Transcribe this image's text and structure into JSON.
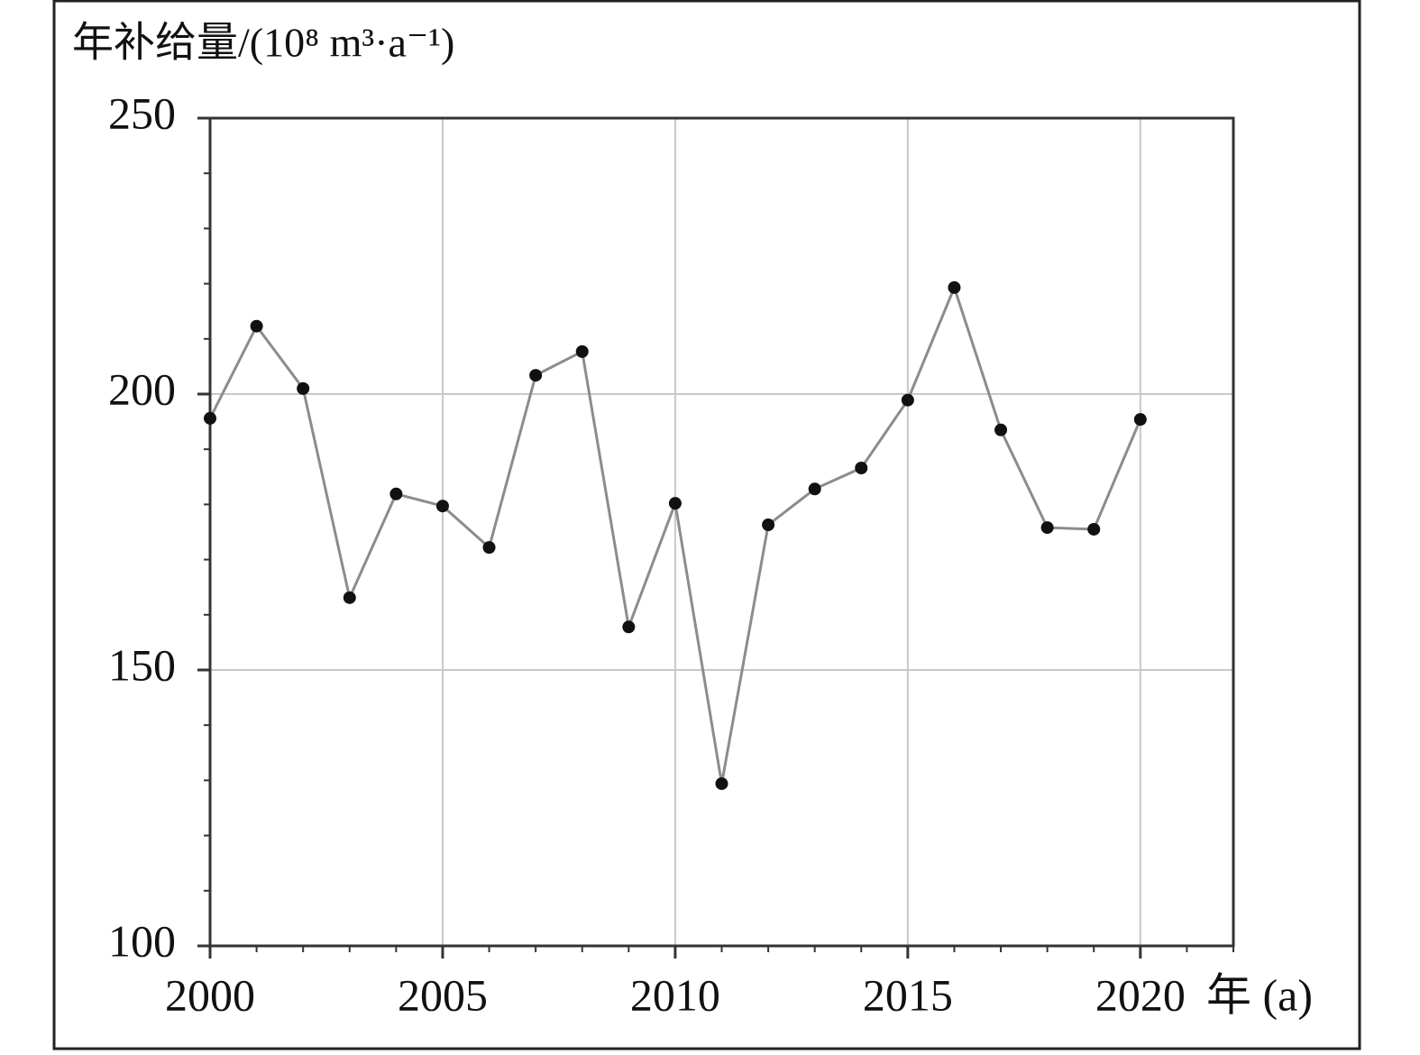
{
  "chart_data": {
    "type": "line",
    "y_label": "年补给量/(10⁸ m³·a⁻¹)",
    "x_label": "年 (a)",
    "x": [
      2000,
      2001,
      2002,
      2003,
      2004,
      2005,
      2006,
      2007,
      2008,
      2009,
      2010,
      2011,
      2012,
      2013,
      2014,
      2015,
      2016,
      2017,
      2018,
      2019,
      2020
    ],
    "values": [
      195.6,
      212.3,
      201.0,
      163.1,
      181.9,
      179.7,
      172.2,
      203.4,
      207.7,
      157.8,
      180.2,
      129.4,
      176.3,
      182.8,
      186.6,
      198.9,
      219.3,
      193.5,
      175.8,
      175.5,
      195.4
    ],
    "line_color": "#8c8c8c",
    "marker_color": "#111111",
    "xlim": [
      2000,
      2022
    ],
    "xticks": [
      2000,
      2005,
      2010,
      2015,
      2020
    ],
    "ylim": [
      100,
      250
    ],
    "yticks": [
      100,
      150,
      200,
      250
    ],
    "grid": true
  }
}
